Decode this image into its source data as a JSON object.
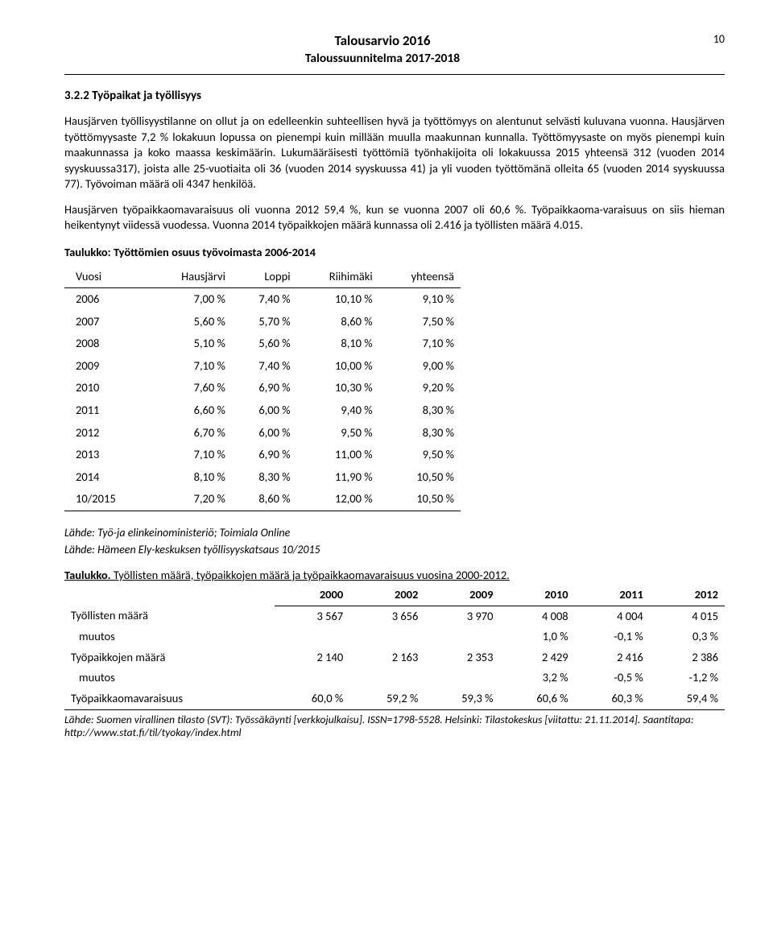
{
  "page_number": "10",
  "header": {
    "title": "Talousarvio 2016",
    "subtitle": "Taloussuunnitelma 2017-2018"
  },
  "section": {
    "heading": "3.2.2 Työpaikat ja työllisyys",
    "p1": "Hausjärven työllisyystilanne on ollut ja on edelleenkin suhteellisen hyvä ja työttömyys on alentunut selvästi kuluvana vuonna. Hausjärven työttömyysaste 7,2 % lokakuun lopussa on pienempi kuin millään muulla maakunnan kunnalla. Työttömyysaste on myös pienempi kuin maakunnassa ja koko maassa keskimäärin. Lukumääräisesti työttömiä työnhakijoita oli lokakuussa 2015 yhteensä 312 (vuoden 2014 syyskuussa317), joista alle 25-vuotiaita oli 36 (vuoden 2014 syyskuussa 41) ja yli vuoden työttömänä olleita 65 (vuoden 2014 syyskuussa 77). Työvoiman määrä oli 4347 henkilöä.",
    "p2": "Hausjärven työpaikkaomavaraisuus oli vuonna 2012 59,4 %, kun se vuonna 2007 oli 60,6 %. Työpaikkaoma-varaisuus on siis hieman heikentynyt viidessä vuodessa. Vuonna 2014 työpaikkojen määrä kunnassa oli 2.416 ja työllisten määrä 4.015."
  },
  "table1": {
    "caption": "Taulukko: Työttömien osuus työvoimasta 2006-2014",
    "columns": [
      "Vuosi",
      "Hausjärvi",
      "Loppi",
      "Riihimäki",
      "yhteensä"
    ],
    "rows": [
      [
        "2006",
        "7,00 %",
        "7,40 %",
        "10,10 %",
        "9,10 %"
      ],
      [
        "2007",
        "5,60 %",
        "5,70 %",
        "8,60 %",
        "7,50 %"
      ],
      [
        "2008",
        "5,10 %",
        "5,60 %",
        "8,10 %",
        "7,10 %"
      ],
      [
        "2009",
        "7,10 %",
        "7,40 %",
        "10,00 %",
        "9,00 %"
      ],
      [
        "2010",
        "7,60 %",
        "6,90 %",
        "10,30 %",
        "9,20 %"
      ],
      [
        "2011",
        "6,60 %",
        "6,00 %",
        "9,40 %",
        "8,30 %"
      ],
      [
        "2012",
        "6,70 %",
        "6,00 %",
        "9,50 %",
        "8,30 %"
      ],
      [
        "2013",
        "7,10 %",
        "6,90 %",
        "11,00 %",
        "9,50 %"
      ],
      [
        "2014",
        "8,10 %",
        "8,30 %",
        "11,90 %",
        "10,50 %"
      ],
      [
        "10/2015",
        "7,20 %",
        "8,60 %",
        "12,00 %",
        "10,50 %"
      ]
    ],
    "source1": "Lähde: Työ-ja elinkeinoministeriö; Toimiala Online",
    "source2": "Lähde: Hämeen Ely-keskuksen työllisyyskatsaus 10/2015"
  },
  "table2": {
    "caption_bold": "Taulukko.",
    "caption_rest": " Työllisten määrä, työpaikkojen määrä ja työpaikkaomavaraisuus vuosina 2000-2012.",
    "columns": [
      "",
      "2000",
      "2002",
      "2009",
      "2010",
      "2011",
      "2012"
    ],
    "rows": [
      {
        "label": "Työllisten määrä",
        "vals": [
          "3 567",
          "3 656",
          "3 970",
          "4 008",
          "4 004",
          "4 015"
        ],
        "indent": false,
        "bb": false
      },
      {
        "label": "muutos",
        "vals": [
          "",
          "",
          "",
          "1,0 %",
          "-0,1 %",
          "0,3 %"
        ],
        "indent": true,
        "bb": false
      },
      {
        "label": "Työpaikkojen määrä",
        "vals": [
          "2 140",
          "2 163",
          "2 353",
          "2 429",
          "2 416",
          "2 386"
        ],
        "indent": false,
        "bb": false
      },
      {
        "label": "muutos",
        "vals": [
          "",
          "",
          "",
          "3,2 %",
          "-0,5 %",
          "-1,2 %"
        ],
        "indent": true,
        "bb": false
      },
      {
        "label": "Työpaikkaomavaraisuus",
        "vals": [
          "60,0 %",
          "59,2 %",
          "59,3 %",
          "60,6 %",
          "60,3 %",
          "59,4 %"
        ],
        "indent": false,
        "bb": true
      }
    ],
    "footnote": "Lähde: Suomen virallinen tilasto (SVT): Työssäkäynti [verkkojulkaisu]. ISSN=1798-5528. Helsinki: Tilastokeskus [viitattu: 21.11.2014]. Saantitapa: http://www.stat.fi/til/tyokay/index.html"
  }
}
